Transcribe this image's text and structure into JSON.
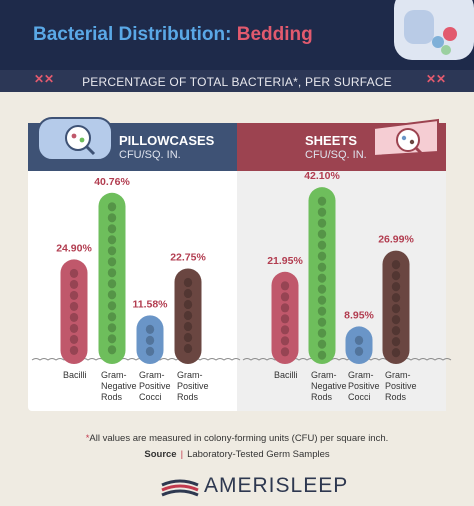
{
  "header": {
    "title_main": "Bacterial Distribution:",
    "title_accent": "Bedding",
    "subtitle": "PERCENTAGE OF TOTAL BACTERIA*, PER SURFACE"
  },
  "footnote": {
    "star": "*",
    "text": "All values are measured in colony-forming units (CFU) per square inch."
  },
  "source": {
    "label": "Source",
    "text": "Laboratory-Tested Germ Samples"
  },
  "brand": "AMERISLEEP",
  "colors": {
    "navy": "#1e2a4a",
    "title_blue": "#5aa8e6",
    "accent_red": "#e25a6e",
    "bacilli": "#c0586b",
    "gram_negative_rods": "#6ebe5c",
    "gram_positive_cocci": "#6a95c7",
    "gram_positive_rods": "#6a4641",
    "label_value": "#b23d50"
  },
  "chart_data": [
    {
      "type": "bar",
      "title": "PILLOWCASES",
      "subtitle": "CFU/SQ. IN.",
      "categories": [
        "Bacilli",
        "Gram-Negative Rods",
        "Gram-Positive Cocci",
        "Gram-Positive Rods"
      ],
      "category_lines": [
        [
          "Bacilli"
        ],
        [
          "Gram-",
          "Negative",
          "Rods"
        ],
        [
          "Gram-",
          "Positive",
          "Cocci"
        ],
        [
          "Gram-",
          "Positive",
          "Rods"
        ]
      ],
      "values": [
        24.9,
        40.76,
        11.58,
        22.75
      ],
      "value_labels": [
        "24.90%",
        "40.76%",
        "11.58%",
        "22.75%"
      ],
      "unit": "%",
      "ylim": [
        0,
        45
      ]
    },
    {
      "type": "bar",
      "title": "SHEETS",
      "subtitle": "CFU/SQ. IN.",
      "categories": [
        "Bacilli",
        "Gram-Negative Rods",
        "Gram-Positive Cocci",
        "Gram-Positive Rods"
      ],
      "category_lines": [
        [
          "Bacilli"
        ],
        [
          "Gram-",
          "Negative",
          "Rods"
        ],
        [
          "Gram-",
          "Positive",
          "Cocci"
        ],
        [
          "Gram-",
          "Positive",
          "Rods"
        ]
      ],
      "values": [
        21.95,
        42.1,
        8.95,
        26.99
      ],
      "value_labels": [
        "21.95%",
        "42.10%",
        "8.95%",
        "26.99%"
      ],
      "unit": "%",
      "ylim": [
        0,
        45
      ]
    }
  ]
}
